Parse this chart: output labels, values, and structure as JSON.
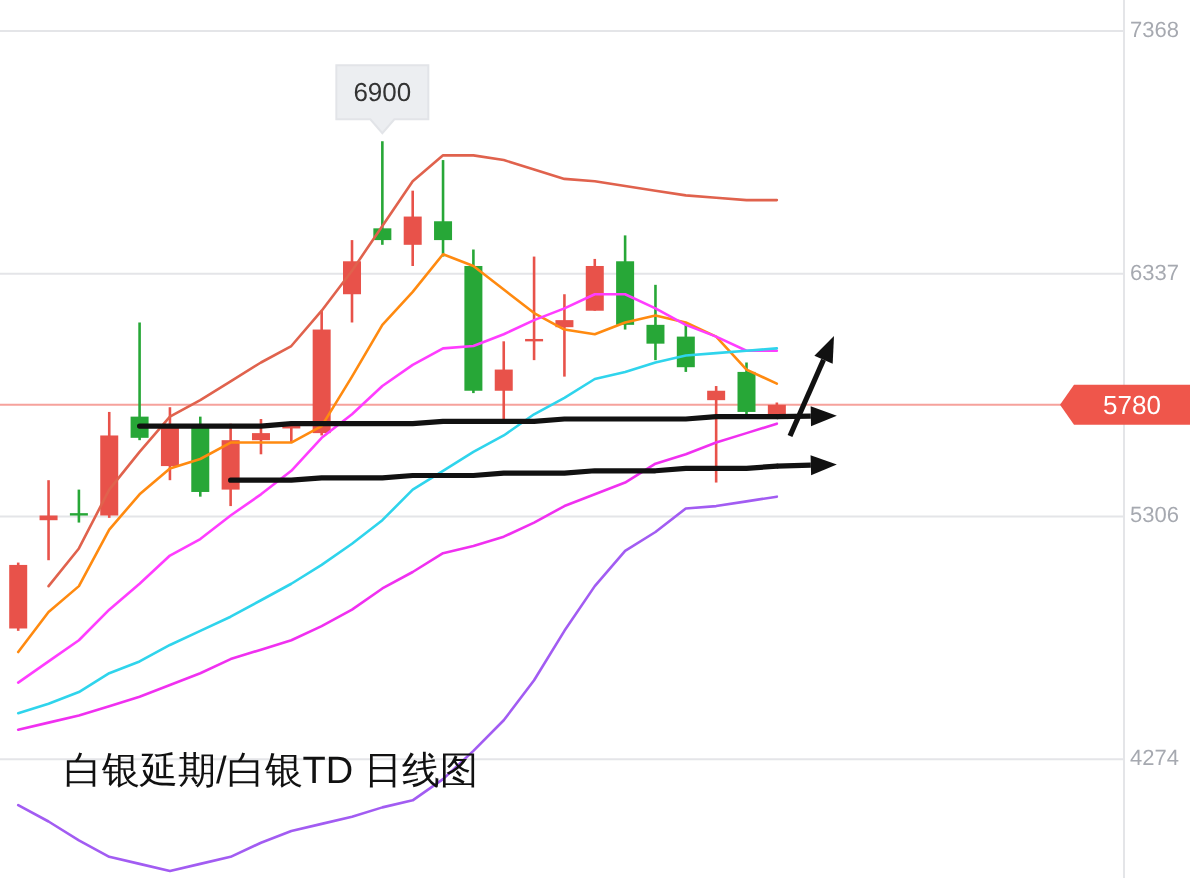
{
  "chart_data": {
    "type": "candlestick",
    "title": "白银延期/白银TD 日线图",
    "categories": [
      null,
      null,
      null,
      null,
      null,
      null,
      null,
      null,
      null,
      null,
      null,
      null,
      null,
      null,
      null,
      null,
      null,
      null,
      null,
      null,
      null,
      null,
      null,
      null,
      null,
      null
    ],
    "ohlc": [
      [
        4830,
        5110,
        4820,
        5100
      ],
      [
        5290,
        5460,
        5120,
        5310
      ],
      [
        5320,
        5420,
        5280,
        5310
      ],
      [
        5310,
        5750,
        5300,
        5650
      ],
      [
        5730,
        6130,
        5630,
        5640
      ],
      [
        5520,
        5770,
        5460,
        5690
      ],
      [
        5690,
        5730,
        5390,
        5410
      ],
      [
        5420,
        5700,
        5350,
        5630
      ],
      [
        5630,
        5720,
        5570,
        5660
      ],
      [
        5680,
        5710,
        5620,
        5690
      ],
      [
        5660,
        6180,
        5650,
        6100
      ],
      [
        6250,
        6480,
        6130,
        6390
      ],
      [
        6530,
        6900,
        6460,
        6480
      ],
      [
        6460,
        6690,
        6370,
        6580
      ],
      [
        6560,
        6820,
        6410,
        6480
      ],
      [
        6370,
        6440,
        5830,
        5840
      ],
      [
        5840,
        6050,
        5710,
        5930
      ],
      [
        6060,
        6410,
        5970,
        6060
      ],
      [
        6110,
        6250,
        5900,
        6140
      ],
      [
        6180,
        6400,
        6180,
        6370
      ],
      [
        6390,
        6500,
        6100,
        6120
      ],
      [
        6120,
        6290,
        5970,
        6040
      ],
      [
        6070,
        6130,
        5920,
        5940
      ],
      [
        5800,
        5860,
        5450,
        5840
      ],
      [
        5920,
        5960,
        5740,
        5750
      ],
      [
        5730,
        5790,
        5730,
        5780
      ]
    ],
    "colors": [
      "#e8524a",
      "#e8524a",
      "#27a737",
      "#e8524a",
      "#27a737",
      "#e8524a",
      "#27a737",
      "#e8524a",
      "#e8524a",
      "#e8524a",
      "#e8524a",
      "#e8524a",
      "#27a737",
      "#e8524a",
      "#27a737",
      "#27a737",
      "#e8524a",
      "#e8524a",
      "#e8524a",
      "#e8524a",
      "#27a737",
      "#27a737",
      "#27a737",
      "#e8524a",
      "#27a737",
      "#e8524a"
    ],
    "series": [
      {
        "type": "line",
        "color": "#e0624d",
        "values": [
          null,
          5010,
          5170,
          5420,
          5580,
          5730,
          5800,
          5880,
          5960,
          6030,
          6180,
          6350,
          6540,
          6730,
          6840,
          6840,
          6820,
          6780,
          6740,
          6730,
          6710,
          6690,
          6670,
          6660,
          6650,
          6650
        ]
      },
      {
        "type": "line",
        "color": "#ff8a10",
        "values": [
          4730,
          4900,
          5010,
          5250,
          5400,
          5510,
          5550,
          5620,
          5620,
          5620,
          5690,
          5900,
          6120,
          6260,
          6420,
          6370,
          6270,
          6170,
          6100,
          6080,
          6130,
          6160,
          6130,
          6070,
          5930,
          5870
        ]
      },
      {
        "type": "line",
        "color": "#ff3dff",
        "values": [
          4600,
          4690,
          4780,
          4910,
          5020,
          5140,
          5210,
          5310,
          5400,
          5500,
          5640,
          5740,
          5860,
          5950,
          6020,
          6030,
          6080,
          6140,
          6190,
          6250,
          6250,
          6190,
          6120,
          6070,
          6010,
          6010
        ]
      },
      {
        "type": "line",
        "color": "#2fd4ec",
        "values": [
          4470,
          4510,
          4560,
          4640,
          4690,
          4760,
          4820,
          4880,
          4950,
          5020,
          5100,
          5190,
          5290,
          5420,
          5500,
          5580,
          5650,
          5740,
          5810,
          5890,
          5920,
          5960,
          5990,
          6000,
          6010,
          6020
        ]
      },
      {
        "type": "line",
        "color": "#f030f0",
        "values": [
          4400,
          4430,
          4460,
          4500,
          4540,
          4590,
          4640,
          4700,
          4740,
          4780,
          4840,
          4910,
          5000,
          5070,
          5150,
          5180,
          5220,
          5280,
          5350,
          5400,
          5450,
          5530,
          5570,
          5620,
          5660,
          5700
        ]
      },
      {
        "type": "line",
        "color": "#a25cf2",
        "values": [
          4080,
          4010,
          3930,
          3860,
          3830,
          3800,
          3830,
          3860,
          3920,
          3970,
          4000,
          4030,
          4070,
          4100,
          4190,
          4310,
          4440,
          4610,
          4820,
          5010,
          5160,
          5240,
          5340,
          5350,
          5370,
          5390
        ]
      },
      {
        "type": "line",
        "color": "#111111",
        "values": [
          null,
          null,
          null,
          null,
          5690,
          5690,
          5690,
          5690,
          5690,
          5700,
          5700,
          5700,
          5700,
          5700,
          5710,
          5710,
          5710,
          5710,
          5720,
          5720,
          5720,
          5720,
          5720,
          5730,
          5730,
          5730
        ]
      },
      {
        "type": "line",
        "color": "#111111",
        "values": [
          null,
          null,
          null,
          null,
          null,
          null,
          null,
          5460,
          5460,
          5460,
          5470,
          5470,
          5470,
          5480,
          5480,
          5480,
          5490,
          5490,
          5490,
          5500,
          5500,
          5500,
          5510,
          5510,
          5510,
          5520
        ]
      }
    ],
    "ylim": [
      3770,
      7500
    ],
    "yticks": [
      7368,
      6337,
      5306,
      4274
    ],
    "grid": "y",
    "tick_labels": "y",
    "ref_lines": [
      {
        "axis": "y",
        "value": 5780,
        "label": "5780",
        "color": "#ef564b"
      }
    ],
    "annotations": [
      {
        "text": "6900",
        "y": 6900
      }
    ]
  }
}
